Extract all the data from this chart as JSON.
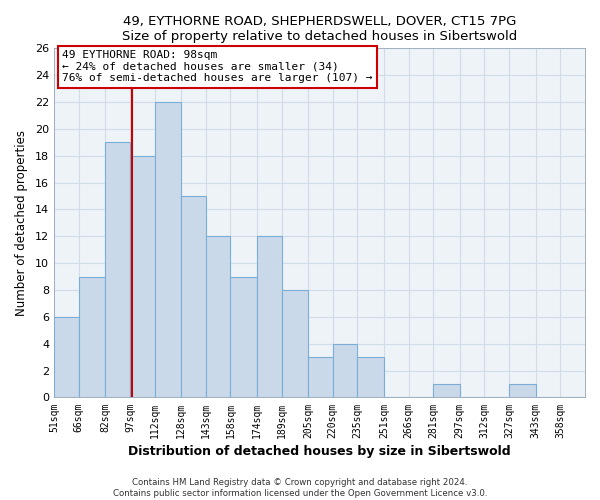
{
  "title1": "49, EYTHORNE ROAD, SHEPHERDSWELL, DOVER, CT15 7PG",
  "title2": "Size of property relative to detached houses in Sibertswold",
  "xlabel": "Distribution of detached houses by size in Sibertswold",
  "ylabel": "Number of detached properties",
  "bin_labels": [
    "51sqm",
    "66sqm",
    "82sqm",
    "97sqm",
    "112sqm",
    "128sqm",
    "143sqm",
    "158sqm",
    "174sqm",
    "189sqm",
    "205sqm",
    "220sqm",
    "235sqm",
    "251sqm",
    "266sqm",
    "281sqm",
    "297sqm",
    "312sqm",
    "327sqm",
    "343sqm",
    "358sqm"
  ],
  "bin_edges": [
    51,
    66,
    82,
    97,
    112,
    128,
    143,
    158,
    174,
    189,
    205,
    220,
    235,
    251,
    266,
    281,
    297,
    312,
    327,
    343,
    358,
    373
  ],
  "counts": [
    6,
    9,
    19,
    18,
    22,
    15,
    12,
    9,
    12,
    8,
    3,
    4,
    3,
    0,
    0,
    1,
    0,
    0,
    1,
    0,
    0
  ],
  "bar_color": "#c9d9ea",
  "bar_edge_color": "#7aaed6",
  "vline_x": 98,
  "vline_color": "#cc0000",
  "annotation_line1": "49 EYTHORNE ROAD: 98sqm",
  "annotation_line2": "← 24% of detached houses are smaller (34)",
  "annotation_line3": "76% of semi-detached houses are larger (107) →",
  "box_edge_color": "#cc0000",
  "ylim": [
    0,
    26
  ],
  "yticks": [
    0,
    2,
    4,
    6,
    8,
    10,
    12,
    14,
    16,
    18,
    20,
    22,
    24,
    26
  ],
  "grid_color": "#d0dde8",
  "bg_color": "#eef3f8",
  "footer1": "Contains HM Land Registry data © Crown copyright and database right 2024.",
  "footer2": "Contains public sector information licensed under the Open Government Licence v3.0."
}
